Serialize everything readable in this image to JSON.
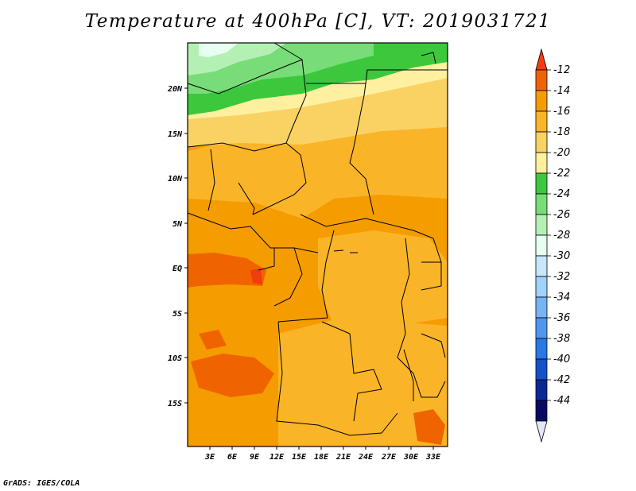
{
  "title": "Temperature at 400hPa [C], VT: 2019031721",
  "credit": "GrADS: IGES/COLA",
  "map": {
    "lat_ticks": [
      "20N",
      "15N",
      "10N",
      "5N",
      "EQ",
      "5S",
      "10S",
      "15S"
    ],
    "lon_ticks": [
      "3E",
      "6E",
      "9E",
      "12E",
      "15E",
      "18E",
      "21E",
      "24E",
      "27E",
      "30E",
      "33E"
    ]
  },
  "colorbar": {
    "labels": [
      "-12",
      "-14",
      "-16",
      "-18",
      "-20",
      "-22",
      "-24",
      "-26",
      "-28",
      "-30",
      "-32",
      "-34",
      "-36",
      "-38",
      "-40",
      "-42",
      "-44"
    ],
    "colors": [
      "#f03c10",
      "#f06400",
      "#f59c00",
      "#fab428",
      "#fad264",
      "#fff0a0",
      "#3cc83c",
      "#78dc78",
      "#b4f0b4",
      "#e6fff0",
      "#c8e6fa",
      "#a0d2fa",
      "#78b4f5",
      "#5096f0",
      "#2878e6",
      "#1450c8",
      "#0a2896",
      "#0a0a64",
      "#e6e6fa"
    ]
  }
}
